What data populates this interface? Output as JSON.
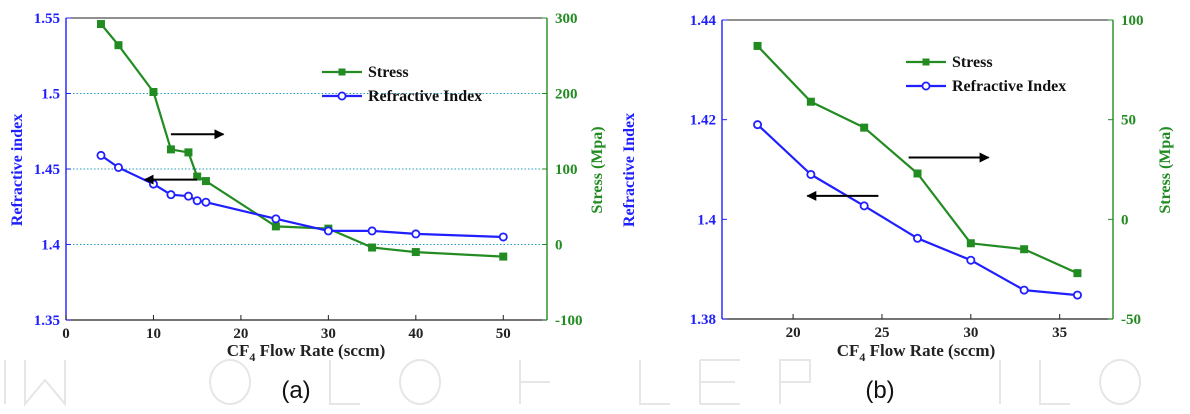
{
  "colors": {
    "stress": "#228b22",
    "refractive": "#1f1fff",
    "axis": "#222222",
    "grid": "#1f9fbf"
  },
  "chart_data": [
    {
      "type": "line",
      "panel_label": "(a)",
      "xlabel_main": "CF",
      "xlabel_sub": "4",
      "xlabel_rest": " Flow Rate (sccm)",
      "ylabel_left": "Refractive index",
      "ylabel_right": "Stress (Mpa)",
      "xlim": [
        0,
        55
      ],
      "ylim_left": [
        1.35,
        1.55
      ],
      "ylim_right": [
        -100,
        300
      ],
      "xticks": [
        0,
        10,
        20,
        30,
        40,
        50
      ],
      "xtick_labels": [
        "0",
        "10",
        "20",
        "30",
        "40",
        "50"
      ],
      "yticks_left": [
        1.35,
        1.4,
        1.45,
        1.5,
        1.55
      ],
      "ytick_labels_left": [
        "1.35",
        "1.4",
        "1.45",
        "1.5",
        "1.55"
      ],
      "yticks_right": [
        -100,
        0,
        100,
        200,
        300
      ],
      "ytick_labels_right": [
        "-100",
        "0",
        "100",
        "200",
        "300"
      ],
      "grid_left": [
        1.4,
        1.45,
        1.5
      ],
      "legend_position": "top-right",
      "series": [
        {
          "name": "Stress",
          "axis": "right",
          "marker": "square",
          "x": [
            4,
            6,
            10,
            12,
            14,
            15,
            16,
            24,
            30,
            35,
            40,
            50
          ],
          "y": [
            292,
            264,
            202,
            126,
            122,
            90,
            84,
            24,
            21,
            -4,
            -10,
            -16
          ]
        },
        {
          "name": "Refractive Index",
          "axis": "left",
          "marker": "circle",
          "x": [
            4,
            6,
            10,
            12,
            14,
            15,
            16,
            24,
            30,
            35,
            40,
            50
          ],
          "y": [
            1.459,
            1.451,
            1.44,
            1.433,
            1.432,
            1.429,
            1.428,
            1.417,
            1.409,
            1.409,
            1.407,
            1.405
          ]
        }
      ],
      "annotations": [
        {
          "type": "arrow",
          "direction": "right",
          "points_to": "right-axis",
          "x_from": 12,
          "x_to": 18,
          "y_left": 1.473
        },
        {
          "type": "arrow",
          "direction": "left",
          "points_to": "left-axis",
          "x_from": 15,
          "x_to": 9,
          "y_left": 1.443
        }
      ]
    },
    {
      "type": "line",
      "panel_label": "(b)",
      "xlabel_main": "CF",
      "xlabel_sub": "4",
      "xlabel_rest": " Flow Rate (sccm)",
      "ylabel_left": "Refractive Index",
      "ylabel_right": "Stress (Mpa)",
      "xlim": [
        16,
        38
      ],
      "ylim_left": [
        1.38,
        1.44
      ],
      "ylim_right": [
        -50,
        100
      ],
      "xticks": [
        20,
        25,
        30,
        35
      ],
      "xtick_labels": [
        "20",
        "25",
        "30",
        "35"
      ],
      "yticks_left": [
        1.38,
        1.4,
        1.42,
        1.44
      ],
      "ytick_labels_left": [
        "1.38",
        "1.4",
        "1.42",
        "1.44"
      ],
      "yticks_right": [
        -50,
        0,
        50,
        100
      ],
      "ytick_labels_right": [
        "-50",
        "0",
        "50",
        "100"
      ],
      "legend_position": "top-right",
      "series": [
        {
          "name": "Stress",
          "axis": "right",
          "marker": "square",
          "x": [
            18,
            21,
            24,
            27,
            30,
            33,
            36
          ],
          "y": [
            87,
            59,
            46,
            23,
            -12,
            -15,
            -27
          ]
        },
        {
          "name": "Refractive Index",
          "axis": "left",
          "marker": "circle",
          "x": [
            18,
            21,
            24,
            27,
            30,
            33,
            36
          ],
          "y": [
            1.419,
            1.409,
            1.4027,
            1.3962,
            1.3918,
            1.3858,
            1.3848
          ]
        }
      ],
      "annotations": [
        {
          "type": "arrow",
          "direction": "right",
          "points_to": "right-axis",
          "x_from": 26.5,
          "x_to": 31,
          "y_left": 1.4124
        },
        {
          "type": "arrow",
          "direction": "left",
          "points_to": "left-axis",
          "x_from": 24.8,
          "x_to": 20.8,
          "y_left": 1.4047
        }
      ]
    }
  ]
}
